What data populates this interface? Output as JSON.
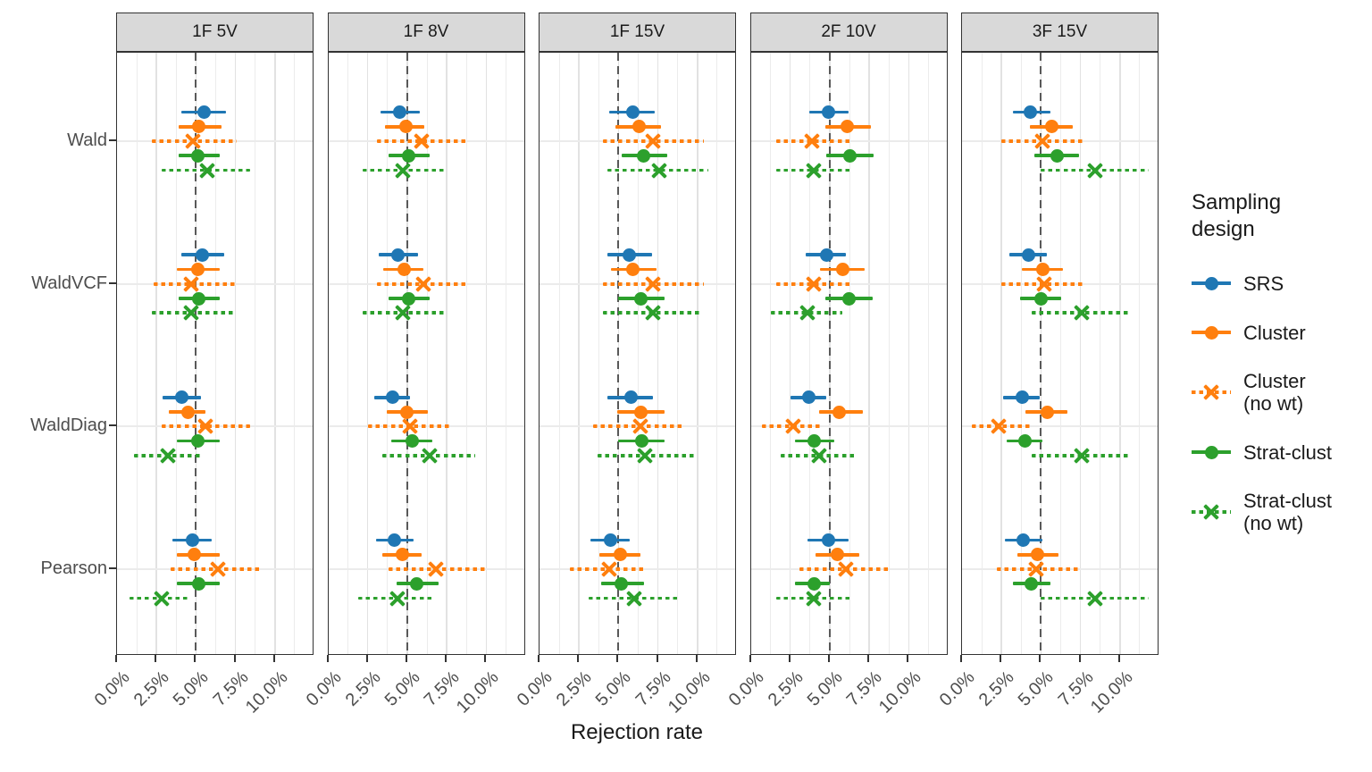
{
  "xlabel": "Rejection rate",
  "legend": {
    "title": "Sampling design",
    "entries": [
      {
        "label": "SRS",
        "color": "#1f77b4",
        "marker": "circle",
        "linetype": "solid"
      },
      {
        "label": "Cluster",
        "color": "#ff7f0e",
        "marker": "circle",
        "linetype": "solid"
      },
      {
        "label": "Cluster\n(no wt)",
        "color": "#ff7f0e",
        "marker": "x",
        "linetype": "dotted"
      },
      {
        "label": "Strat-clust",
        "color": "#2ca02c",
        "marker": "circle",
        "linetype": "solid"
      },
      {
        "label": "Strat-clust\n(no wt)",
        "color": "#2ca02c",
        "marker": "x",
        "linetype": "dotted"
      }
    ]
  },
  "chart_data": {
    "type": "scatter",
    "description": "Faceted dot-and-errorbar plot of rejection rates (point estimate with interval, in percent) by test statistic and sampling design",
    "facet_labels": [
      "1F 5V",
      "1F 8V",
      "1F 15V",
      "2F 10V",
      "3F 15V"
    ],
    "tests": [
      "Wald",
      "WaldVCF",
      "WaldDiag",
      "Pearson"
    ],
    "designs": [
      "SRS",
      "Cluster",
      "Cluster (no wt)",
      "Strat-clust",
      "Strat-clust (no wt)"
    ],
    "design_colors": [
      "#1f77b4",
      "#ff7f0e",
      "#ff7f0e",
      "#2ca02c",
      "#2ca02c"
    ],
    "design_markers": [
      "circle",
      "circle",
      "x",
      "circle",
      "x"
    ],
    "design_linetypes": [
      "solid",
      "solid",
      "dotted",
      "solid",
      "dotted"
    ],
    "x_tick_labels": [
      "0.0%",
      "2.5%",
      "5.0%",
      "7.5%",
      "10.0%"
    ],
    "x_tick_values": [
      0,
      2.5,
      5,
      7.5,
      10
    ],
    "xlim": [
      0,
      12.5
    ],
    "minor_grid_values": [
      1.25,
      3.75,
      6.25,
      8.75,
      11.25
    ],
    "reference_line": 5,
    "reference_line_color": "#595959",
    "grid": true,
    "legend_position": "right",
    "values_format": "[estimate, lower, upper] in percent",
    "facets": [
      {
        "label": "1F 5V",
        "tests": [
          {
            "test": "Wald",
            "values": [
              [
                5.5,
                4.1,
                6.9
              ],
              [
                5.2,
                3.9,
                6.6
              ],
              [
                4.8,
                2.2,
                7.6
              ],
              [
                5.1,
                3.9,
                6.5
              ],
              [
                5.7,
                2.8,
                8.4
              ]
            ]
          },
          {
            "test": "WaldVCF",
            "values": [
              [
                5.4,
                4.1,
                6.8
              ],
              [
                5.1,
                3.8,
                6.5
              ],
              [
                4.7,
                2.3,
                7.5
              ],
              [
                5.2,
                3.9,
                6.5
              ],
              [
                4.7,
                2.2,
                7.4
              ]
            ]
          },
          {
            "test": "WaldDiag",
            "values": [
              [
                4.1,
                2.9,
                5.3
              ],
              [
                4.5,
                3.3,
                5.6
              ],
              [
                5.6,
                2.8,
                8.4
              ],
              [
                5.1,
                3.8,
                6.5
              ],
              [
                3.2,
                1.1,
                5.4
              ]
            ]
          },
          {
            "test": "Pearson",
            "values": [
              [
                4.8,
                3.5,
                6.0
              ],
              [
                4.9,
                3.8,
                6.5
              ],
              [
                6.4,
                3.4,
                9.2
              ],
              [
                5.2,
                3.8,
                6.5
              ],
              [
                2.8,
                0.8,
                4.6
              ]
            ]
          }
        ]
      },
      {
        "label": "1F 8V",
        "tests": [
          {
            "test": "Wald",
            "values": [
              [
                4.5,
                3.3,
                5.8
              ],
              [
                4.9,
                3.6,
                6.1
              ],
              [
                5.9,
                3.1,
                8.9
              ],
              [
                5.1,
                3.8,
                6.4
              ],
              [
                4.7,
                2.2,
                7.4
              ]
            ]
          },
          {
            "test": "WaldVCF",
            "values": [
              [
                4.4,
                3.2,
                5.7
              ],
              [
                4.8,
                3.5,
                6.0
              ],
              [
                6.0,
                3.1,
                8.9
              ],
              [
                5.1,
                3.8,
                6.4
              ],
              [
                4.7,
                2.2,
                7.4
              ]
            ]
          },
          {
            "test": "WaldDiag",
            "values": [
              [
                4.1,
                2.9,
                5.2
              ],
              [
                5.0,
                3.7,
                6.3
              ],
              [
                5.2,
                2.5,
                7.8
              ],
              [
                5.3,
                4.0,
                6.6
              ],
              [
                6.4,
                3.4,
                9.3
              ]
            ]
          },
          {
            "test": "Pearson",
            "values": [
              [
                4.2,
                3.0,
                5.4
              ],
              [
                4.7,
                3.4,
                5.9
              ],
              [
                6.8,
                3.8,
                9.9
              ],
              [
                5.6,
                4.3,
                7.0
              ],
              [
                4.4,
                1.9,
                6.7
              ]
            ]
          }
        ]
      },
      {
        "label": "1F 15V",
        "tests": [
          {
            "test": "Wald",
            "values": [
              [
                5.9,
                4.4,
                7.3
              ],
              [
                6.3,
                4.8,
                7.7
              ],
              [
                7.2,
                4.0,
                10.4
              ],
              [
                6.6,
                5.2,
                8.1
              ],
              [
                7.6,
                4.3,
                10.7
              ]
            ]
          },
          {
            "test": "WaldVCF",
            "values": [
              [
                5.7,
                4.3,
                7.1
              ],
              [
                5.9,
                4.5,
                7.4
              ],
              [
                7.2,
                4.0,
                10.4
              ],
              [
                6.4,
                5.0,
                7.9
              ],
              [
                7.2,
                4.0,
                10.3
              ]
            ]
          },
          {
            "test": "WaldDiag",
            "values": [
              [
                5.8,
                4.3,
                7.2
              ],
              [
                6.4,
                4.9,
                7.9
              ],
              [
                6.4,
                3.4,
                9.2
              ],
              [
                6.5,
                5.0,
                7.9
              ],
              [
                6.7,
                3.7,
                9.9
              ]
            ]
          },
          {
            "test": "Pearson",
            "values": [
              [
                4.5,
                3.2,
                5.7
              ],
              [
                5.1,
                3.8,
                6.4
              ],
              [
                4.4,
                1.9,
                6.7
              ],
              [
                5.2,
                3.9,
                6.6
              ],
              [
                6.0,
                3.1,
                8.8
              ]
            ]
          }
        ]
      },
      {
        "label": "2F 10V",
        "tests": [
          {
            "test": "Wald",
            "values": [
              [
                4.9,
                3.7,
                6.2
              ],
              [
                6.1,
                4.7,
                7.6
              ],
              [
                3.9,
                1.6,
                6.3
              ],
              [
                6.3,
                4.8,
                7.8
              ],
              [
                4.0,
                1.6,
                6.4
              ]
            ]
          },
          {
            "test": "WaldVCF",
            "values": [
              [
                4.8,
                3.5,
                6.0
              ],
              [
                5.8,
                4.4,
                7.2
              ],
              [
                4.0,
                1.6,
                6.4
              ],
              [
                6.2,
                4.7,
                7.7
              ],
              [
                3.6,
                1.3,
                5.8
              ]
            ]
          },
          {
            "test": "WaldDiag",
            "values": [
              [
                3.7,
                2.5,
                4.8
              ],
              [
                5.6,
                4.3,
                7.1
              ],
              [
                2.7,
                0.7,
                4.6
              ],
              [
                4.0,
                2.8,
                5.3
              ],
              [
                4.3,
                1.9,
                6.7
              ]
            ]
          },
          {
            "test": "Pearson",
            "values": [
              [
                4.9,
                3.6,
                6.2
              ],
              [
                5.5,
                4.1,
                6.9
              ],
              [
                6.0,
                3.1,
                8.9
              ],
              [
                4.0,
                2.8,
                5.0
              ],
              [
                4.0,
                1.6,
                6.4
              ]
            ]
          }
        ]
      },
      {
        "label": "3F 15V",
        "tests": [
          {
            "test": "Wald",
            "values": [
              [
                4.3,
                3.2,
                5.6
              ],
              [
                5.7,
                4.3,
                7.0
              ],
              [
                5.1,
                2.5,
                7.7
              ],
              [
                6.0,
                4.6,
                7.4
              ],
              [
                8.4,
                5.0,
                11.8
              ]
            ]
          },
          {
            "test": "WaldVCF",
            "values": [
              [
                4.2,
                3.0,
                5.4
              ],
              [
                5.1,
                3.8,
                6.4
              ],
              [
                5.2,
                2.5,
                7.8
              ],
              [
                5.0,
                3.7,
                6.3
              ],
              [
                7.6,
                4.4,
                10.7
              ]
            ]
          },
          {
            "test": "WaldDiag",
            "values": [
              [
                3.8,
                2.6,
                4.9
              ],
              [
                5.4,
                4.0,
                6.7
              ],
              [
                2.3,
                0.6,
                4.3
              ],
              [
                4.0,
                2.8,
                5.1
              ],
              [
                7.6,
                4.4,
                10.7
              ]
            ]
          },
          {
            "test": "Pearson",
            "values": [
              [
                3.9,
                2.7,
                5.1
              ],
              [
                4.8,
                3.5,
                6.1
              ],
              [
                4.7,
                2.2,
                7.4
              ],
              [
                4.4,
                3.2,
                5.6
              ],
              [
                8.4,
                5.0,
                11.8
              ]
            ]
          }
        ]
      }
    ]
  }
}
